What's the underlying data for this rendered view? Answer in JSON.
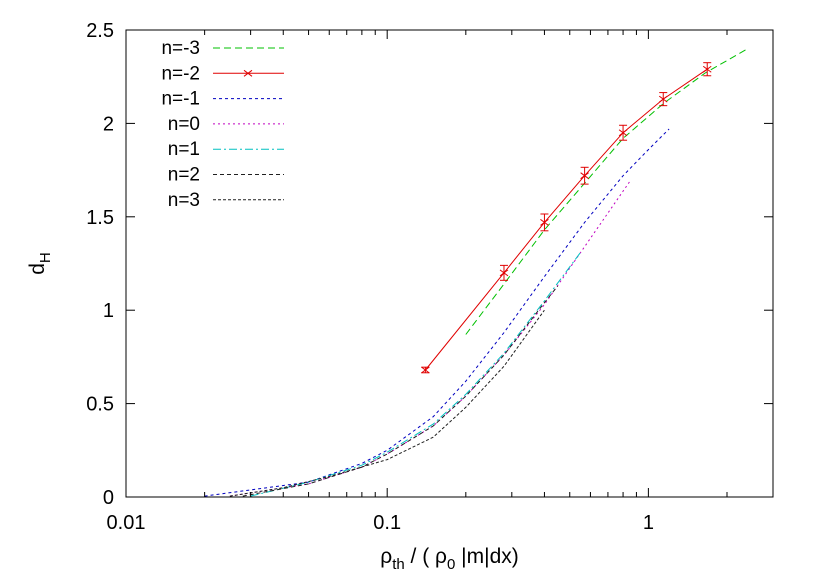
{
  "chart_data": {
    "type": "line",
    "title": "",
    "xlabel": {
      "parts": [
        {
          "t": "ρ",
          "sub": false
        },
        {
          "t": "th",
          "sub": true
        },
        {
          "t": " / ( ρ",
          "sub": false
        },
        {
          "t": "0",
          "sub": true
        },
        {
          "t": " |m|dx)",
          "sub": false
        }
      ]
    },
    "ylabel": {
      "parts": [
        {
          "t": "d",
          "sub": false
        },
        {
          "t": "H",
          "sub": true
        }
      ]
    },
    "x_scale": "log",
    "xlim": [
      0.01,
      3
    ],
    "ylim": [
      0,
      2.5
    ],
    "x_ticks": [
      {
        "value": 0.01,
        "label": "0.01"
      },
      {
        "value": 0.1,
        "label": "0.1"
      },
      {
        "value": 1,
        "label": "1"
      }
    ],
    "y_ticks": [
      {
        "value": 0,
        "label": "0"
      },
      {
        "value": 0.5,
        "label": "0.5"
      },
      {
        "value": 1,
        "label": "1"
      },
      {
        "value": 1.5,
        "label": "1.5"
      },
      {
        "value": 2,
        "label": "2"
      },
      {
        "value": 2.5,
        "label": "2.5"
      }
    ],
    "grid": false,
    "legend_position": "top-left",
    "series": [
      {
        "name": "n=-3",
        "color": "#00c000",
        "dash": "7,4",
        "x": [
          0.2,
          0.28,
          0.4,
          0.57,
          0.8,
          1.15,
          1.65,
          2.4
        ],
        "y": [
          0.87,
          1.14,
          1.43,
          1.68,
          1.92,
          2.11,
          2.27,
          2.4
        ]
      },
      {
        "name": "n=-2",
        "color": "#e00000",
        "dash": "",
        "x": [
          0.14,
          0.28,
          0.4,
          0.57,
          0.8,
          1.14,
          1.68
        ],
        "y": [
          0.68,
          1.2,
          1.47,
          1.72,
          1.95,
          2.13,
          2.29
        ],
        "err": [
          0.015,
          0.04,
          0.045,
          0.045,
          0.04,
          0.035,
          0.035
        ]
      },
      {
        "name": "n=-1",
        "color": "#0000c0",
        "dash": "3,3",
        "x": [
          0.02,
          0.05,
          0.08,
          0.1,
          0.15,
          0.2,
          0.28,
          0.4,
          0.57,
          0.8,
          1.0,
          1.2
        ],
        "y": [
          0.005,
          0.08,
          0.18,
          0.25,
          0.43,
          0.62,
          0.88,
          1.18,
          1.47,
          1.72,
          1.86,
          1.97
        ]
      },
      {
        "name": "n=0",
        "color": "#c000c0",
        "dash": "2,3",
        "x": [
          0.025,
          0.05,
          0.08,
          0.1,
          0.15,
          0.2,
          0.28,
          0.4,
          0.57,
          0.85
        ],
        "y": [
          0.005,
          0.07,
          0.16,
          0.23,
          0.38,
          0.54,
          0.76,
          1.03,
          1.34,
          1.69
        ]
      },
      {
        "name": "n=1",
        "color": "#00c0c0",
        "dash": "8,3,2,3",
        "x": [
          0.03,
          0.05,
          0.08,
          0.1,
          0.15,
          0.2,
          0.28,
          0.4,
          0.55
        ],
        "y": [
          0.005,
          0.08,
          0.17,
          0.24,
          0.39,
          0.55,
          0.77,
          1.05,
          1.31
        ]
      },
      {
        "name": "n=2",
        "color": "#202020",
        "dash": "4,3",
        "x": [
          0.028,
          0.05,
          0.08,
          0.1,
          0.15,
          0.2,
          0.28,
          0.4,
          0.45
        ],
        "y": [
          0.005,
          0.07,
          0.16,
          0.23,
          0.38,
          0.54,
          0.76,
          1.04,
          1.13
        ]
      },
      {
        "name": "n=3",
        "color": "#202020",
        "dash": "3,2",
        "x": [
          0.025,
          0.04,
          0.06,
          0.1,
          0.15,
          0.2,
          0.28,
          0.4
        ],
        "y": [
          0.005,
          0.05,
          0.11,
          0.2,
          0.32,
          0.48,
          0.7,
          1.0
        ]
      }
    ]
  }
}
